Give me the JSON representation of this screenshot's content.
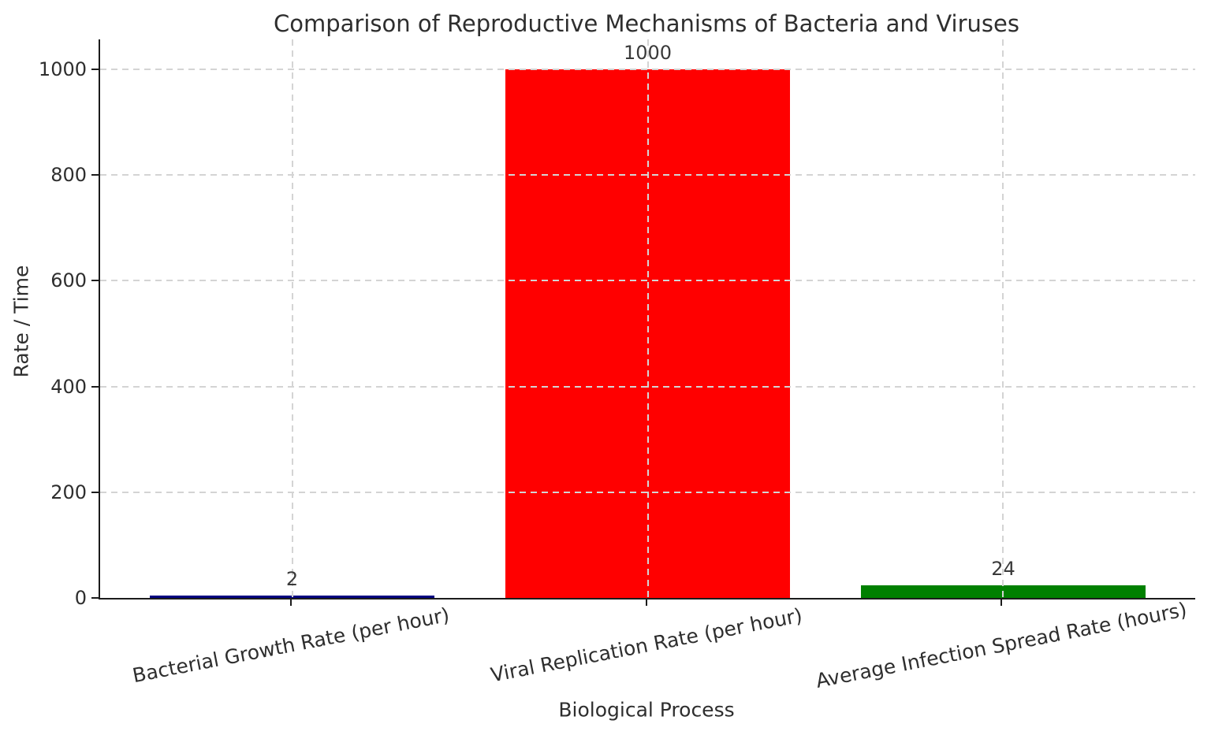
{
  "chart_data": {
    "type": "bar",
    "title": "Comparison of Reproductive Mechanisms of Bacteria and Viruses",
    "xlabel": "Biological Process",
    "ylabel": "Rate / Time",
    "categories": [
      "Bacterial Growth Rate (per hour)",
      "Viral Replication Rate (per hour)",
      "Average Infection Spread Rate (hours)"
    ],
    "values": [
      2,
      1000,
      24
    ],
    "value_labels": [
      "2",
      "1000",
      "24"
    ],
    "bar_colors": [
      "#000080",
      "#ff0000",
      "#008000"
    ],
    "yticks": [
      0,
      200,
      400,
      600,
      800,
      1000
    ],
    "ylim": [
      0,
      1050
    ],
    "grid": "dashed, both axes, drawn over bars",
    "legend": "none",
    "xtick_rotation_deg": -11,
    "colors": {
      "axis": "#1c1c1c",
      "grid": "#d4d4d4",
      "text": "#2e2e2e",
      "background": "#ffffff"
    }
  }
}
